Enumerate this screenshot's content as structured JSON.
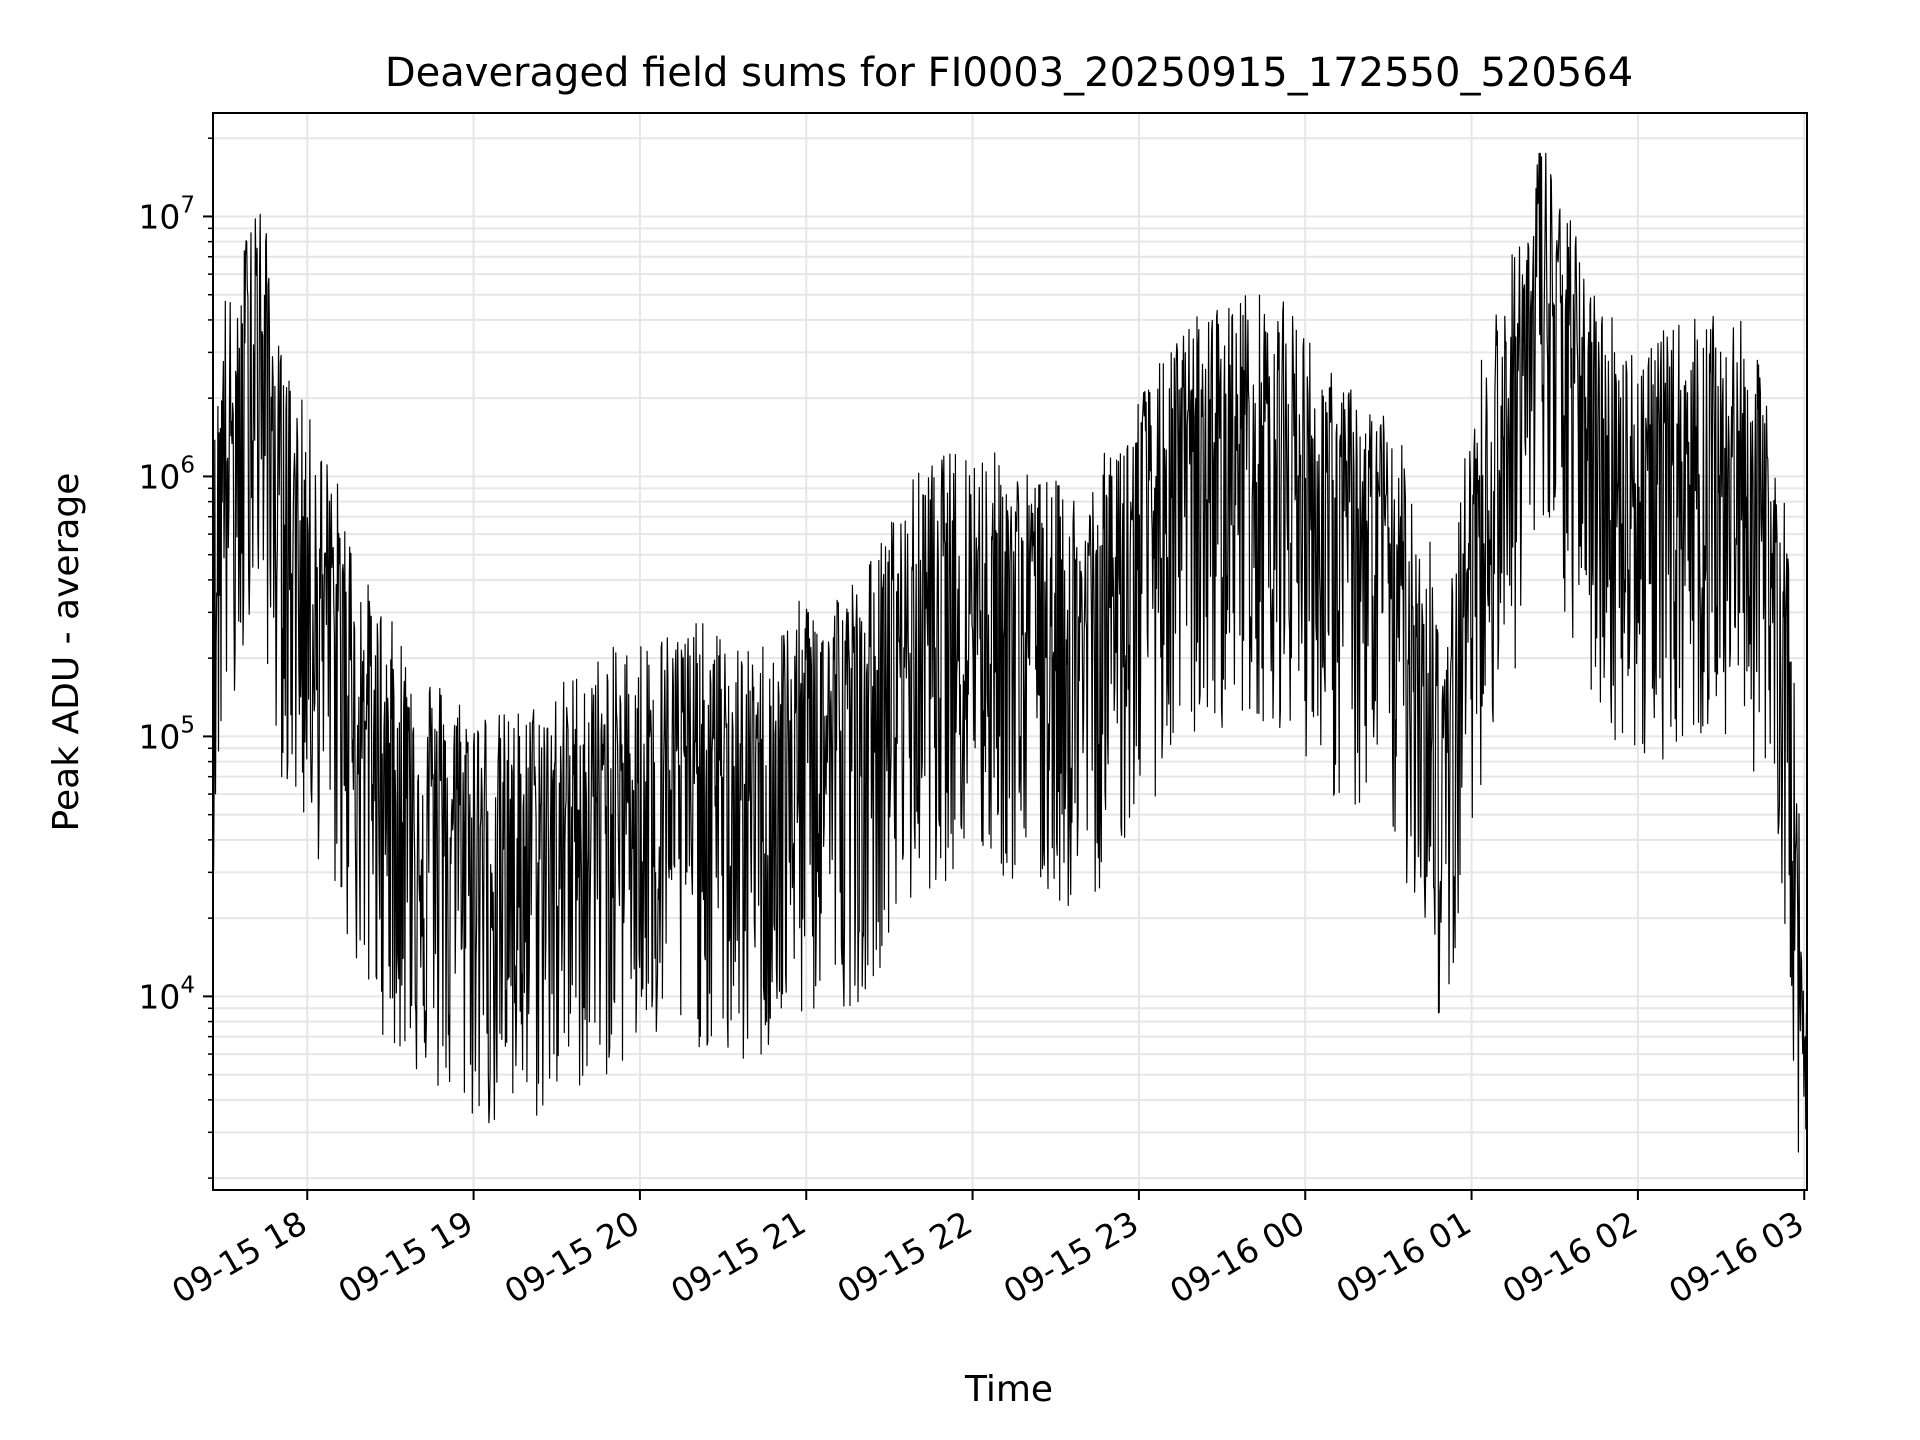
{
  "chart_data": {
    "type": "line",
    "title": "Deaveraged field sums for FI0003_20250915_172550_520564",
    "xlabel": "Time",
    "ylabel": "Peak ADU - average",
    "yscale": "log",
    "ylim": [
      1800,
      25000000
    ],
    "xlim": [
      "2025-09-15 17:26",
      "2025-09-16 03:01"
    ],
    "grid": true,
    "line_color": "#000000",
    "grid_color": "#e6e6e6",
    "x_ticks": [
      {
        "t": "2025-09-15 18:00",
        "label": "09-15 18"
      },
      {
        "t": "2025-09-15 19:00",
        "label": "09-15 19"
      },
      {
        "t": "2025-09-15 20:00",
        "label": "09-15 20"
      },
      {
        "t": "2025-09-15 21:00",
        "label": "09-15 21"
      },
      {
        "t": "2025-09-15 22:00",
        "label": "09-15 22"
      },
      {
        "t": "2025-09-15 23:00",
        "label": "09-15 23"
      },
      {
        "t": "2025-09-16 00:00",
        "label": "09-16 00"
      },
      {
        "t": "2025-09-16 01:00",
        "label": "09-16 01"
      },
      {
        "t": "2025-09-16 02:00",
        "label": "09-16 02"
      },
      {
        "t": "2025-09-16 03:00",
        "label": "09-16 03"
      }
    ],
    "y_ticks": [
      {
        "value": 10000,
        "base": "10",
        "exp": "4"
      },
      {
        "value": 100000,
        "base": "10",
        "exp": "5"
      },
      {
        "value": 1000000,
        "base": "10",
        "exp": "6"
      },
      {
        "value": 10000000,
        "base": "10",
        "exp": "7"
      }
    ],
    "series": [
      {
        "points": [
          [
            "2025-09-15 17:26",
            350000
          ],
          [
            "2025-09-15 17:30",
            1600000
          ],
          [
            "2025-09-15 17:35",
            1200000
          ],
          [
            "2025-09-15 17:40",
            4800000
          ],
          [
            "2025-09-15 17:45",
            2600000
          ],
          [
            "2025-09-15 17:50",
            900000
          ],
          [
            "2025-09-15 18:00",
            500000
          ],
          [
            "2025-09-15 18:10",
            300000
          ],
          [
            "2025-09-15 18:20",
            120000
          ],
          [
            "2025-09-15 18:30",
            80000
          ],
          [
            "2025-09-15 18:40",
            60000
          ],
          [
            "2025-09-15 18:50",
            45000
          ],
          [
            "2025-09-15 19:00",
            40000
          ],
          [
            "2025-09-15 19:10",
            35000
          ],
          [
            "2025-09-15 19:20",
            38000
          ],
          [
            "2025-09-15 19:40",
            55000
          ],
          [
            "2025-09-15 20:00",
            70000
          ],
          [
            "2025-09-15 20:20",
            80000
          ],
          [
            "2025-09-15 20:40",
            60000
          ],
          [
            "2025-09-15 21:00",
            100000
          ],
          [
            "2025-09-15 21:20",
            120000
          ],
          [
            "2025-09-15 21:40",
            300000
          ],
          [
            "2025-09-15 22:00",
            400000
          ],
          [
            "2025-09-15 22:20",
            300000
          ],
          [
            "2025-09-15 22:40",
            250000
          ],
          [
            "2025-09-15 23:00",
            600000
          ],
          [
            "2025-09-15 23:20",
            1200000
          ],
          [
            "2025-09-15 23:40",
            1500000
          ],
          [
            "2025-09-15 23:55",
            1300000
          ],
          [
            "2025-09-16 00:10",
            700000
          ],
          [
            "2025-09-16 00:30",
            500000
          ],
          [
            "2025-09-16 00:45",
            200000
          ],
          [
            "2025-09-16 00:50",
            60000
          ],
          [
            "2025-09-16 01:00",
            600000
          ],
          [
            "2025-09-16 01:10",
            1500000
          ],
          [
            "2025-09-16 01:20",
            3000000
          ],
          [
            "2025-09-16 01:25",
            7000000
          ],
          [
            "2025-09-16 01:30",
            4000000
          ],
          [
            "2025-09-16 01:45",
            1500000
          ],
          [
            "2025-09-16 02:00",
            900000
          ],
          [
            "2025-09-16 02:20",
            1200000
          ],
          [
            "2025-09-16 02:40",
            1100000
          ],
          [
            "2025-09-16 02:50",
            400000
          ],
          [
            "2025-09-16 02:55",
            150000
          ],
          [
            "2025-09-16 02:59",
            8000
          ],
          [
            "2025-09-16 03:00",
            5000
          ]
        ]
      }
    ]
  }
}
